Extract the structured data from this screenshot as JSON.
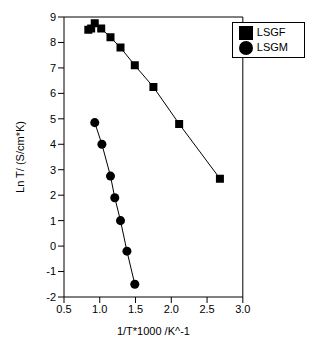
{
  "chart_data": {
    "type": "line",
    "x_label": "1/T*1000 /K^-1",
    "y_label": "Ln T/ (S/cm*K)",
    "xlim": [
      0.5,
      3.0
    ],
    "xticks": [
      {
        "value": 0.5,
        "label": "0.5"
      },
      {
        "value": 1.0,
        "label": "1.0"
      },
      {
        "value": 1.5,
        "label": "1.5"
      },
      {
        "value": 2.0,
        "label": "2.0"
      },
      {
        "value": 2.5,
        "label": "2.5"
      },
      {
        "value": 3.0,
        "label": "3.0"
      }
    ],
    "ylim": [
      -2,
      9
    ],
    "yticks": [
      -2,
      -1,
      0,
      1,
      2,
      3,
      4,
      5,
      6,
      7,
      8,
      9
    ],
    "legend": "upper right",
    "grid": false,
    "series": [
      {
        "name": "LSGF",
        "color": "#000000",
        "marker": "square",
        "x": [
          0.84,
          0.88,
          0.93,
          1.02,
          1.15,
          1.29,
          1.49,
          1.75,
          2.11,
          2.68
        ],
        "values": [
          8.5,
          8.55,
          8.75,
          8.55,
          8.2,
          7.8,
          7.1,
          6.25,
          4.8,
          2.65
        ]
      },
      {
        "name": "LSGM",
        "color": "#000000",
        "marker": "circle",
        "x": [
          0.93,
          1.03,
          1.15,
          1.21,
          1.29,
          1.38,
          1.49
        ],
        "values": [
          4.85,
          4.0,
          2.75,
          1.9,
          1.0,
          -0.2,
          -1.5
        ]
      }
    ]
  }
}
